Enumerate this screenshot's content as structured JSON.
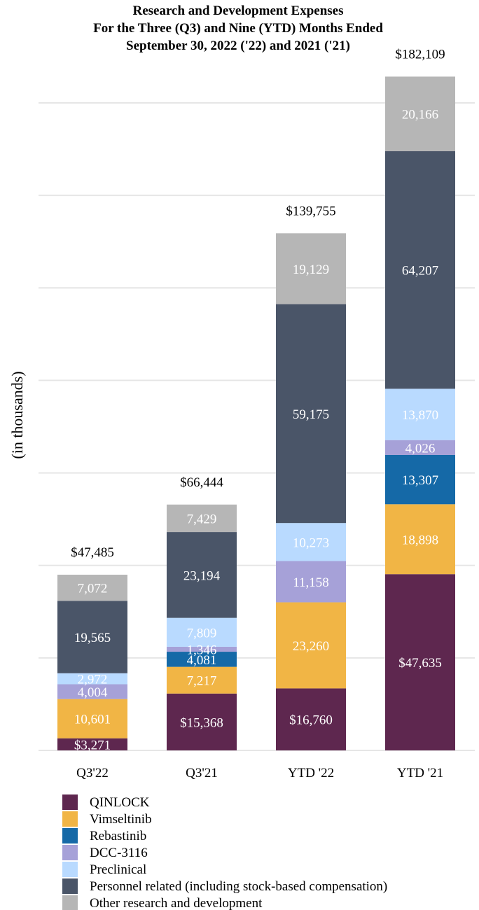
{
  "chart_data": {
    "type": "bar",
    "stacked": true,
    "title": [
      "Research and Development Expenses",
      "For the Three (Q3) and Nine (YTD) Months Ended",
      "September 30, 2022 ('22) and 2021 ('21)"
    ],
    "xlabel": "",
    "ylabel": "(in thousands)",
    "ylim": [
      0,
      200000
    ],
    "grid": true,
    "legend_position": "bottom-left",
    "categories": [
      "Q3'22",
      "Q3'21",
      "YTD '22",
      "YTD '21"
    ],
    "totals": [
      47485,
      66444,
      139755,
      182109
    ],
    "total_labels": [
      "$47,485",
      "$66,444",
      "$139,755",
      "$182,109"
    ],
    "series": [
      {
        "name": "QINLOCK",
        "color": "#5e274f",
        "values": [
          3271,
          15368,
          16760,
          47635
        ],
        "labels": [
          "$3,271",
          "$15,368",
          "$16,760",
          "$47,635"
        ]
      },
      {
        "name": "Vimseltinib",
        "color": "#f1b545",
        "values": [
          10601,
          7217,
          23260,
          18898
        ],
        "labels": [
          "10,601",
          "7,217",
          "23,260",
          "18,898"
        ]
      },
      {
        "name": "Rebastinib",
        "color": "#1569a7",
        "values": [
          0,
          4081,
          0,
          13307
        ],
        "labels": [
          "",
          "4,081",
          "",
          "13,307"
        ]
      },
      {
        "name": "DCC-3116",
        "color": "#a6a1d8",
        "values": [
          4004,
          1346,
          11158,
          4026
        ],
        "labels": [
          "4,004",
          "1,346",
          "11,158",
          "4,026"
        ]
      },
      {
        "name": "Preclinical",
        "color": "#b9daff",
        "values": [
          2972,
          7809,
          10273,
          13870
        ],
        "labels": [
          "2,972",
          "7,809",
          "10,273",
          "13,870"
        ]
      },
      {
        "name": "Personnel related (including stock-based compensation)",
        "color": "#4a5568",
        "values": [
          19565,
          23194,
          59175,
          64207
        ],
        "labels": [
          "19,565",
          "23,194",
          "59,175",
          "64,207"
        ]
      },
      {
        "name": "Other research and development",
        "color": "#b6b6b6",
        "values": [
          7072,
          7429,
          19129,
          20166
        ],
        "labels": [
          "7,072",
          "7,429",
          "19,129",
          "20,166"
        ]
      }
    ]
  }
}
